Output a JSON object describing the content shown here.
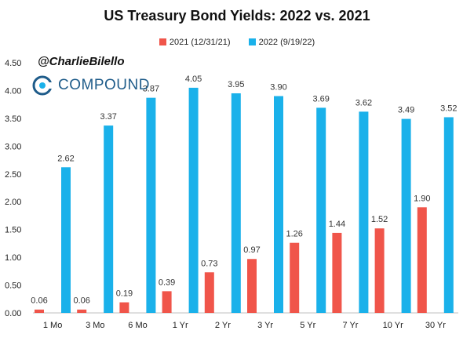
{
  "header": {
    "title": "US Treasury Bond Yields: 2022 vs. 2021"
  },
  "branding": {
    "handle": "@CharlieBilello",
    "logo_text": "COMPOUND"
  },
  "colors": {
    "series_2021": "#f0554a",
    "series_2022": "#1ab1ea",
    "logo": "#1f5c8a"
  },
  "legend": {
    "item_2021": "2021 (12/31/21)",
    "item_2022": "2022 (9/19/22)"
  },
  "chart_data": {
    "type": "bar",
    "title": "US Treasury Bond Yields: 2022 vs. 2021",
    "xlabel": "",
    "ylabel": "",
    "ylim": [
      0,
      4.5
    ],
    "yticks": [
      "0.00",
      "0.50",
      "1.00",
      "1.50",
      "2.00",
      "2.50",
      "3.00",
      "3.50",
      "4.00",
      "4.50"
    ],
    "grid": false,
    "legend_position": "top-center",
    "categories": [
      "1 Mo",
      "3 Mo",
      "6 Mo",
      "1 Yr",
      "2 Yr",
      "3 Yr",
      "5 Yr",
      "7 Yr",
      "10 Yr",
      "30 Yr"
    ],
    "series": [
      {
        "name": "2021 (12/31/21)",
        "values": [
          0.06,
          0.06,
          0.19,
          0.39,
          0.73,
          0.97,
          1.26,
          1.44,
          1.52,
          1.9
        ],
        "labels": [
          "0.06",
          "0.06",
          "0.19",
          "0.39",
          "0.73",
          "0.97",
          "1.26",
          "1.44",
          "1.52",
          "1.90"
        ]
      },
      {
        "name": "2022 (9/19/22)",
        "values": [
          2.62,
          3.37,
          3.87,
          4.05,
          3.95,
          3.9,
          3.69,
          3.62,
          3.49,
          3.52
        ],
        "labels": [
          "2.62",
          "3.37",
          "3.87",
          "4.05",
          "3.95",
          "3.90",
          "3.69",
          "3.62",
          "3.49",
          "3.52"
        ]
      }
    ]
  }
}
